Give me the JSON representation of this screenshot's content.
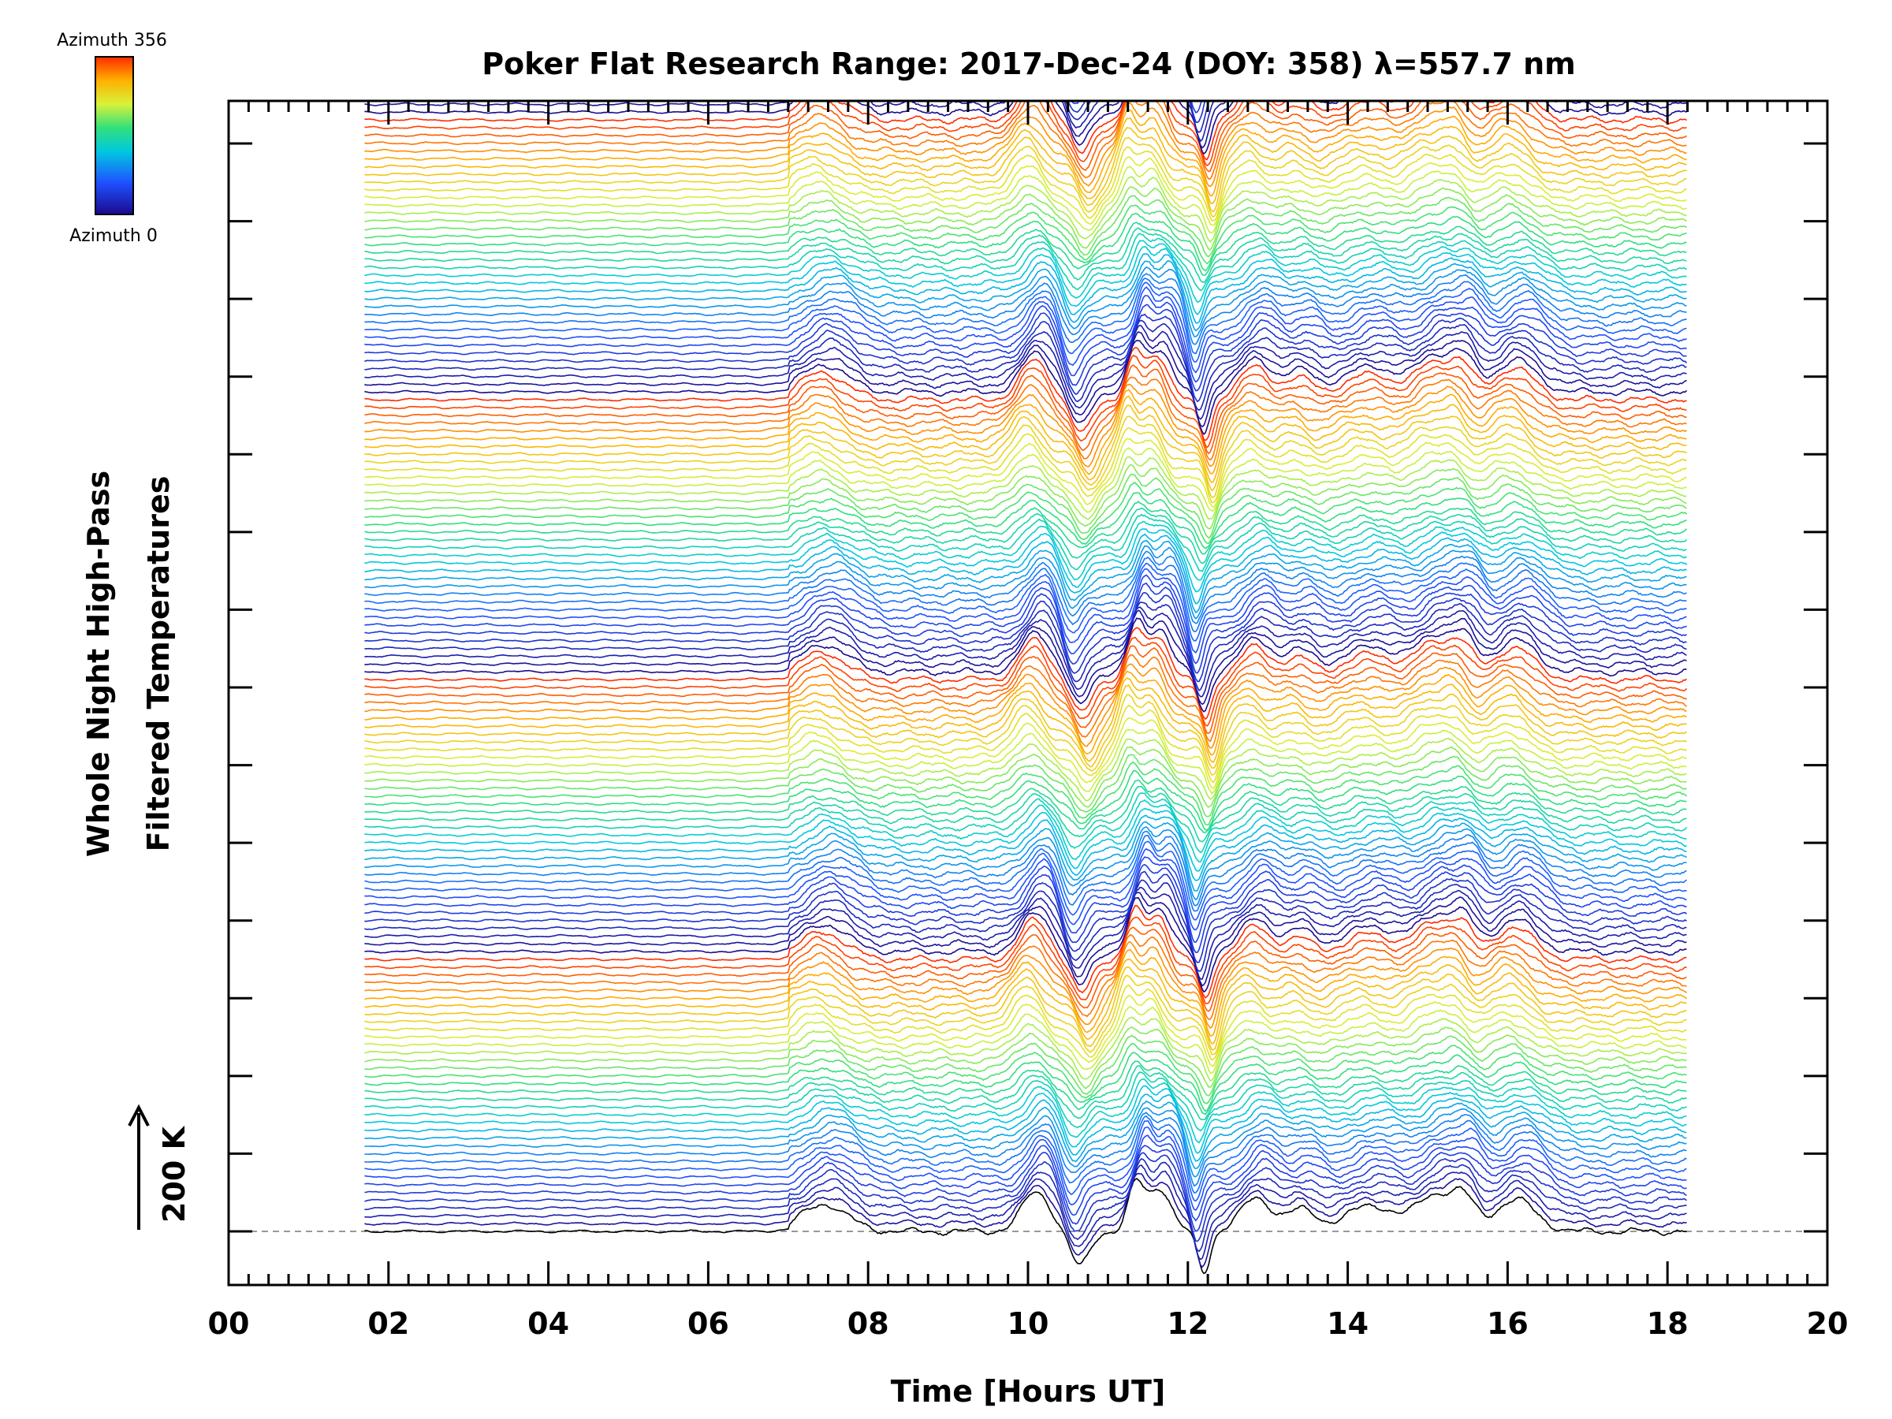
{
  "chart_data": {
    "type": "line",
    "title": "Poker Flat Research Range: 2017-Dec-24 (DOY: 358) λ=557.7 nm",
    "xlabel": "Time [Hours UT]",
    "ylabel_line1": "Whole Night High-Pass",
    "ylabel_line2": "Filtered Temperatures",
    "scale_label": "200 K",
    "colorbar": {
      "top_label": "Azimuth 356",
      "bottom_label": "Azimuth 0",
      "colormap": "rainbow"
    },
    "xlim": [
      0,
      20
    ],
    "x_ticks": [
      "00",
      "02",
      "04",
      "06",
      "08",
      "10",
      "12",
      "14",
      "16",
      "18",
      "20"
    ],
    "x_range_data": [
      1.7,
      18.25
    ],
    "n_traces": 170,
    "trace_offset_K": 34,
    "azimuth_cycle": 36,
    "features": [
      {
        "t": 7.45,
        "amp": 120,
        "width": 0.28,
        "note": "onset pulse"
      },
      {
        "t": 10.1,
        "amp": 170,
        "width": 0.18
      },
      {
        "t": 10.65,
        "amp": -150,
        "width": 0.12
      },
      {
        "t": 11.35,
        "amp": 200,
        "width": 0.1
      },
      {
        "t": 11.65,
        "amp": 190,
        "width": 0.14
      },
      {
        "t": 12.2,
        "amp": -180,
        "width": 0.08
      },
      {
        "t": 12.85,
        "amp": 140,
        "width": 0.2
      },
      {
        "t": 13.4,
        "amp": 90,
        "width": 0.18
      },
      {
        "t": 14.3,
        "amp": 110,
        "width": 0.35
      },
      {
        "t": 15.1,
        "amp": 150,
        "width": 0.22
      },
      {
        "t": 15.45,
        "amp": 130,
        "width": 0.15
      },
      {
        "t": 16.1,
        "amp": 140,
        "width": 0.25
      }
    ],
    "colors": {
      "azimuth_low": "#1a0a8c",
      "azimuth_high": "#ff2a00",
      "baseline": "#999999"
    },
    "grid": false
  }
}
